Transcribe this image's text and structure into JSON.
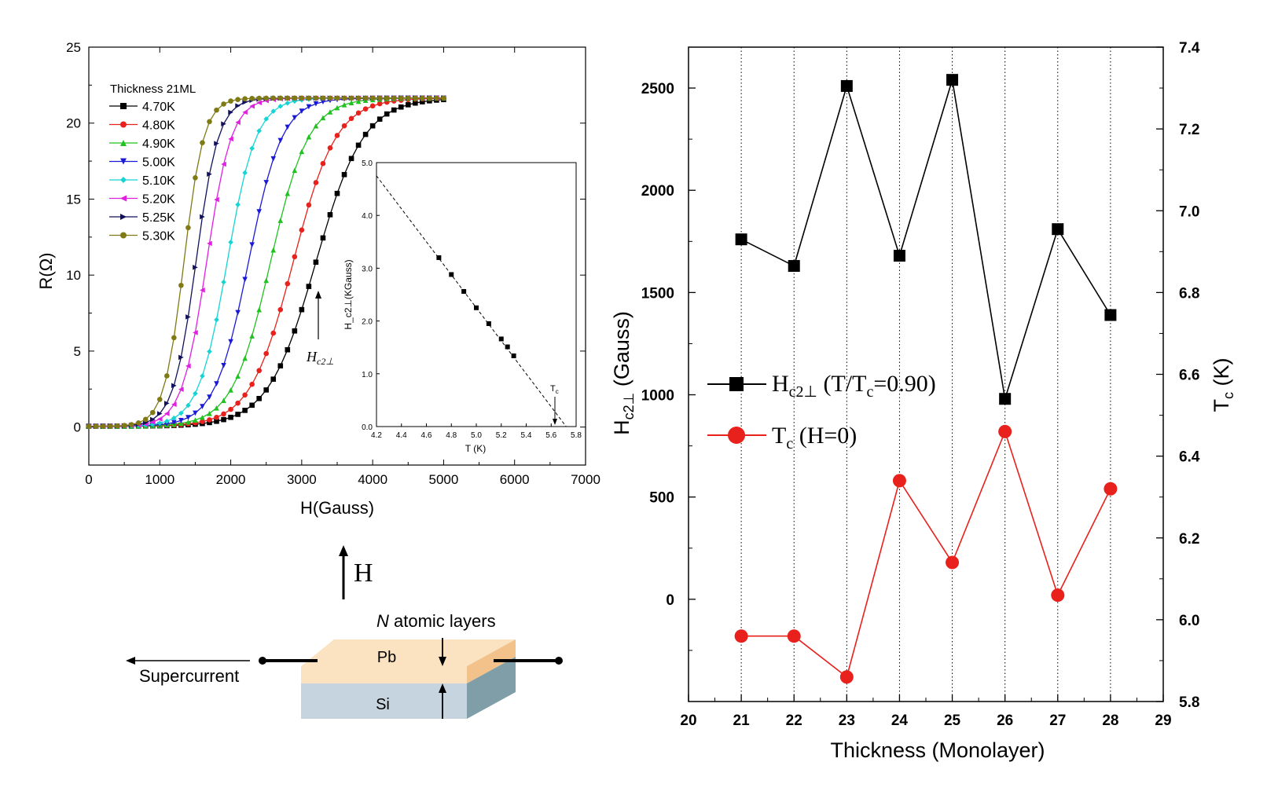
{
  "chart_data": [
    {
      "type": "line",
      "panel": "R vs H",
      "xlabel": "H(Gauss)",
      "ylabel": "R(Ω)",
      "xlim": [
        0,
        7000
      ],
      "ylim": [
        -2.5,
        25
      ],
      "x_ticks": [
        "0",
        "1000",
        "2000",
        "3000",
        "4000",
        "5000",
        "6000",
        "7000"
      ],
      "y_ticks": [
        "0",
        "5",
        "10",
        "15",
        "20",
        "25"
      ],
      "legend_title": "Thickness 21ML",
      "legend_position": "top-left",
      "series": [
        {
          "name": "4.70K",
          "color": "#000000",
          "marker": "square",
          "midpoint_H": 3200
        },
        {
          "name": "4.80K",
          "color": "#e8211c",
          "marker": "circle",
          "midpoint_H": 2880
        },
        {
          "name": "4.90K",
          "color": "#1fc21f",
          "marker": "triangle-up",
          "midpoint_H": 2560
        },
        {
          "name": "5.00K",
          "color": "#1a1ad6",
          "marker": "triangle-down",
          "midpoint_H": 2250
        },
        {
          "name": "5.10K",
          "color": "#16d4d4",
          "marker": "diamond",
          "midpoint_H": 1950
        },
        {
          "name": "5.20K",
          "color": "#e01fe0",
          "marker": "triangle-left",
          "midpoint_H": 1660
        },
        {
          "name": "5.25K",
          "color": "#11115a",
          "marker": "triangle-right",
          "midpoint_H": 1510
        },
        {
          "name": "5.30K",
          "color": "#7f7a14",
          "marker": "circle",
          "midpoint_H": 1340
        }
      ],
      "annotation": "H_c2⊥"
    },
    {
      "type": "scatter",
      "panel": "inset",
      "xlabel": "T (K)",
      "ylabel": "H_c2⊥(KGauss)",
      "xlim": [
        4.2,
        5.8
      ],
      "ylim": [
        0,
        5
      ],
      "x_ticks": [
        "4.2",
        "4.4",
        "4.6",
        "4.8",
        "5.0",
        "5.2",
        "5.4",
        "5.6",
        "5.8"
      ],
      "y_ticks": [
        "0.0",
        "1.0",
        "2.0",
        "3.0",
        "4.0",
        "5.0"
      ],
      "x": [
        4.7,
        4.8,
        4.9,
        5.0,
        5.1,
        5.2,
        5.25,
        5.3
      ],
      "y": [
        3.2,
        2.88,
        2.56,
        2.25,
        1.95,
        1.66,
        1.51,
        1.34
      ],
      "fit_line": {
        "x": [
          4.2,
          5.72
        ],
        "y": [
          4.75,
          0.0
        ]
      },
      "annotation": "T_c"
    },
    {
      "type": "line",
      "panel": "Hc2 and Tc vs thickness",
      "xlabel": "Thickness (Monolayer)",
      "ylabel_left": "H_c2⊥ (Gauss)",
      "ylabel_right": "T_c (K)",
      "xlim": [
        20,
        29
      ],
      "ylim_left": [
        -500,
        2700
      ],
      "ylim_right": [
        5.8,
        7.4
      ],
      "x_ticks": [
        "20",
        "21",
        "22",
        "23",
        "24",
        "25",
        "26",
        "27",
        "28",
        "29"
      ],
      "y_ticks_left": [
        "0",
        "500",
        "1000",
        "1500",
        "2000",
        "2500"
      ],
      "y_ticks_right": [
        "5.8",
        "6.0",
        "6.2",
        "6.4",
        "6.6",
        "6.8",
        "7.0",
        "7.2",
        "7.4"
      ],
      "grid": "vertical dotted",
      "legend_position": "center-left",
      "series": [
        {
          "name": "H_c2⊥ (T/T_c=0.90)",
          "axis": "left",
          "color": "#000000",
          "marker": "square",
          "x": [
            21,
            22,
            23,
            24,
            25,
            26,
            27,
            28
          ],
          "y": [
            1760,
            1630,
            2510,
            1680,
            2540,
            980,
            1810,
            1390
          ]
        },
        {
          "name": "T_c (H=0)",
          "axis": "right",
          "color": "#e8211c",
          "marker": "circle",
          "x": [
            21,
            22,
            23,
            24,
            25,
            26,
            27,
            28
          ],
          "y": [
            5.96,
            5.96,
            5.86,
            6.34,
            6.14,
            6.46,
            6.06,
            6.32
          ]
        }
      ]
    }
  ],
  "schematic": {
    "field_label": "H",
    "layers_label_italic": "N",
    "layers_label_rest": " atomic layers",
    "top_layer": "Pb",
    "bottom_layer": "Si",
    "current_label": "Supercurrent"
  }
}
